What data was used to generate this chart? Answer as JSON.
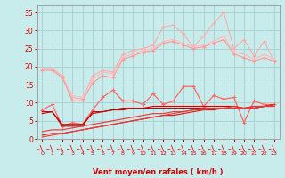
{
  "background_color": "#c8ecec",
  "grid_color": "#aad4d4",
  "x_labels": [
    "0",
    "1",
    "2",
    "3",
    "4",
    "5",
    "6",
    "7",
    "8",
    "9",
    "10",
    "11",
    "12",
    "13",
    "14",
    "15",
    "16",
    "17",
    "18",
    "19",
    "20",
    "21",
    "22",
    "23"
  ],
  "x_values": [
    0,
    1,
    2,
    3,
    4,
    5,
    6,
    7,
    8,
    9,
    10,
    11,
    12,
    13,
    14,
    15,
    16,
    17,
    18,
    19,
    20,
    21,
    22,
    23
  ],
  "xlabel": "Vent moyen/en rafales ( km/h )",
  "ylim": [
    0,
    37
  ],
  "yticks": [
    0,
    5,
    10,
    15,
    20,
    25,
    30,
    35
  ],
  "series": [
    {
      "color": "#ffaaaa",
      "linewidth": 0.8,
      "marker": "+",
      "markersize": 3,
      "linestyle": "-",
      "data": [
        19.5,
        19.5,
        17.5,
        11.5,
        11.0,
        17.5,
        19.0,
        18.5,
        23.5,
        24.5,
        25.0,
        26.0,
        31.0,
        31.5,
        29.0,
        25.5,
        28.5,
        32.0,
        35.0,
        25.0,
        27.5,
        23.0,
        27.0,
        21.5
      ]
    },
    {
      "color": "#ffbbbb",
      "linewidth": 0.8,
      "marker": "+",
      "markersize": 3,
      "linestyle": "-",
      "data": [
        19.5,
        19.5,
        17.0,
        12.0,
        11.5,
        16.5,
        18.5,
        18.0,
        22.5,
        23.5,
        24.5,
        25.0,
        27.0,
        27.5,
        26.5,
        25.5,
        26.0,
        27.0,
        28.5,
        24.0,
        23.5,
        22.0,
        23.5,
        22.0
      ]
    },
    {
      "color": "#ff9999",
      "linewidth": 0.8,
      "marker": "+",
      "markersize": 3,
      "linestyle": "-",
      "data": [
        19.0,
        19.0,
        17.0,
        10.5,
        10.5,
        15.5,
        17.5,
        17.0,
        22.0,
        23.0,
        24.0,
        24.5,
        26.5,
        27.0,
        26.0,
        25.0,
        25.5,
        26.5,
        27.5,
        23.5,
        22.5,
        21.5,
        22.5,
        21.5
      ]
    },
    {
      "color": "#ff6666",
      "linewidth": 0.9,
      "marker": "+",
      "markersize": 3,
      "linestyle": "-",
      "data": [
        8.0,
        9.5,
        3.5,
        4.5,
        4.0,
        8.0,
        11.5,
        13.5,
        10.5,
        10.5,
        9.5,
        12.5,
        9.5,
        10.5,
        14.5,
        14.5,
        9.0,
        12.0,
        11.0,
        11.5,
        4.5,
        10.5,
        9.5,
        9.5
      ]
    },
    {
      "color": "#cc0000",
      "linewidth": 0.8,
      "marker": null,
      "markersize": 0,
      "linestyle": "-",
      "data": [
        7.5,
        7.5,
        3.5,
        3.5,
        3.5,
        7.5,
        7.5,
        8.0,
        8.0,
        8.5,
        8.5,
        8.5,
        8.5,
        8.5,
        8.5,
        8.5,
        8.5,
        8.5,
        8.5,
        8.5,
        8.5,
        8.5,
        9.0,
        9.5
      ]
    },
    {
      "color": "#cc0000",
      "linewidth": 0.8,
      "marker": null,
      "markersize": 0,
      "linestyle": "-",
      "data": [
        7.0,
        7.5,
        4.0,
        4.0,
        4.0,
        7.0,
        7.5,
        8.0,
        8.5,
        8.5,
        8.5,
        9.0,
        9.0,
        9.0,
        9.0,
        9.0,
        9.0,
        9.0,
        9.0,
        9.0,
        8.5,
        9.0,
        9.0,
        9.5
      ]
    },
    {
      "color": "#dd1111",
      "linewidth": 0.8,
      "marker": null,
      "markersize": 0,
      "linestyle": "-",
      "data": [
        1.0,
        1.5,
        1.5,
        2.0,
        2.5,
        3.0,
        3.5,
        4.0,
        4.5,
        5.0,
        5.5,
        6.0,
        6.5,
        6.5,
        7.0,
        7.5,
        8.0,
        8.0,
        8.5,
        8.5,
        8.5,
        8.5,
        9.0,
        9.0
      ]
    },
    {
      "color": "#ee3333",
      "linewidth": 0.8,
      "marker": null,
      "markersize": 0,
      "linestyle": "-",
      "data": [
        2.0,
        2.5,
        2.5,
        3.0,
        3.5,
        4.0,
        4.5,
        5.0,
        5.5,
        6.0,
        6.5,
        7.0,
        7.0,
        7.5,
        7.5,
        8.0,
        8.5,
        8.5,
        8.5,
        9.0,
        8.5,
        9.0,
        9.0,
        9.5
      ]
    },
    {
      "color": "#ff3333",
      "linewidth": 0.8,
      "marker": null,
      "markersize": 0,
      "linestyle": "-",
      "data": [
        0.5,
        1.0,
        1.5,
        2.0,
        2.5,
        3.0,
        3.5,
        4.0,
        4.5,
        5.0,
        5.5,
        6.0,
        6.5,
        7.0,
        7.5,
        8.0,
        8.0,
        8.5,
        8.5,
        8.5,
        8.5,
        8.5,
        9.0,
        9.0
      ]
    }
  ]
}
